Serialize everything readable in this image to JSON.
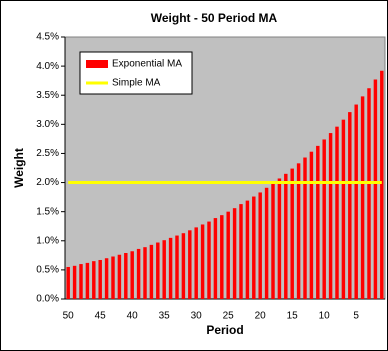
{
  "chart_data": {
    "type": "bar",
    "title": "Weight - 50 Period MA",
    "x_label": "Period",
    "y_label": "Weight",
    "categories": [
      "50",
      null,
      null,
      null,
      null,
      "45",
      null,
      null,
      null,
      null,
      "40",
      null,
      null,
      null,
      null,
      "35",
      null,
      null,
      null,
      null,
      "30",
      null,
      null,
      null,
      null,
      "25",
      null,
      null,
      null,
      null,
      "20",
      null,
      null,
      null,
      null,
      "15",
      null,
      null,
      null,
      null,
      "10",
      null,
      null,
      null,
      null,
      "5",
      null,
      null,
      null,
      null
    ],
    "series": [
      {
        "name": "Exponential MA",
        "type": "bar",
        "color": "#ff0000",
        "values": [
          0.55,
          0.57,
          0.6,
          0.62,
          0.65,
          0.67,
          0.7,
          0.73,
          0.76,
          0.79,
          0.82,
          0.86,
          0.89,
          0.93,
          0.97,
          1.01,
          1.05,
          1.09,
          1.13,
          1.18,
          1.23,
          1.28,
          1.33,
          1.39,
          1.44,
          1.5,
          1.56,
          1.63,
          1.69,
          1.76,
          1.83,
          1.91,
          1.99,
          2.07,
          2.15,
          2.24,
          2.33,
          2.43,
          2.53,
          2.63,
          2.74,
          2.85,
          2.96,
          3.08,
          3.21,
          3.34,
          3.48,
          3.62,
          3.77,
          3.92
        ]
      },
      {
        "name": "Simple MA",
        "type": "line",
        "color": "#ffff00",
        "values": [
          2,
          2,
          2,
          2,
          2,
          2,
          2,
          2,
          2,
          2,
          2,
          2,
          2,
          2,
          2,
          2,
          2,
          2,
          2,
          2,
          2,
          2,
          2,
          2,
          2,
          2,
          2,
          2,
          2,
          2,
          2,
          2,
          2,
          2,
          2,
          2,
          2,
          2,
          2,
          2,
          2,
          2,
          2,
          2,
          2,
          2,
          2,
          2,
          2,
          2
        ]
      }
    ],
    "ylim": [
      0,
      4.5
    ],
    "yticks": [
      {
        "value": 0,
        "label": "0.0%"
      },
      {
        "value": 0.5,
        "label": "0.5%"
      },
      {
        "value": 1,
        "label": "1.0%"
      },
      {
        "value": 1.5,
        "label": "1.5%"
      },
      {
        "value": 2,
        "label": "2.0%"
      },
      {
        "value": 2.5,
        "label": "2.5%"
      },
      {
        "value": 3,
        "label": "3.0%"
      },
      {
        "value": 3.5,
        "label": "3.5%"
      },
      {
        "value": 4,
        "label": "4.0%"
      },
      {
        "value": 4.5,
        "label": "4.5%"
      }
    ],
    "grid": false,
    "legend": "top-left",
    "plot_background": "#c0c0c0"
  }
}
